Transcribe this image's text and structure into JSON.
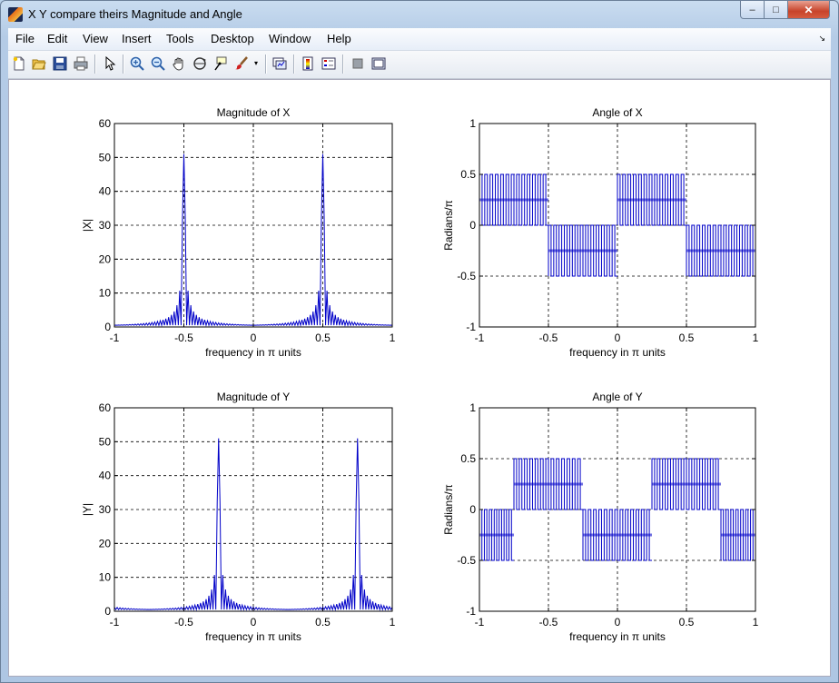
{
  "window": {
    "title": "X Y compare theirs Magnitude and Angle",
    "controls": {
      "minimize": "–",
      "maximize": "□",
      "close": "✕"
    }
  },
  "menu": {
    "items": [
      "File",
      "Edit",
      "View",
      "Insert",
      "Tools",
      "Desktop",
      "Window",
      "Help"
    ],
    "dock_arrow": "↘"
  },
  "toolbar": {
    "icons": [
      "new-figure-icon",
      "open-file-icon",
      "save-icon",
      "print-icon",
      "edit-plot-arrow-icon",
      "zoom-in-icon",
      "zoom-out-icon",
      "pan-hand-icon",
      "rotate-3d-icon",
      "data-cursor-icon",
      "brush-icon",
      "dropdown-arrow-icon",
      "link-plot-icon",
      "colorbar-icon",
      "legend-icon",
      "hide-plot-tools-icon",
      "show-plot-tools-icon"
    ]
  },
  "colors": {
    "line": "#0000c8",
    "grid": "#000000"
  },
  "chart_data": [
    {
      "type": "line",
      "title": "Magnitude of X",
      "xlabel": "frequency in π units",
      "ylabel": "|X|",
      "xlim": [
        -1,
        1
      ],
      "ylim": [
        0,
        60
      ],
      "xticks": [
        "-1",
        "-0.5",
        "0",
        "0.5",
        "1"
      ],
      "yticks": [
        "0",
        "10",
        "20",
        "30",
        "40",
        "50",
        "60"
      ],
      "grid": true,
      "peaks": [
        -0.5,
        0.5
      ],
      "peak_value": 51,
      "series": [
        {
          "kind": "dft-magnitude",
          "x_range": [
            -1,
            1
          ],
          "samples": 201,
          "N": 101,
          "freqs": [
            -0.5,
            0.5
          ],
          "peak": 51
        }
      ]
    },
    {
      "type": "line",
      "title": "Angle of X",
      "xlabel": "frequency in π units",
      "ylabel": "Radians/π",
      "xlim": [
        -1,
        1
      ],
      "ylim": [
        -1,
        1
      ],
      "xticks": [
        "-1",
        "-0.5",
        "0",
        "0.5",
        "1"
      ],
      "yticks": [
        "-1",
        "-0.5",
        "0",
        "0.5",
        "1"
      ],
      "grid": true,
      "segments": [
        {
          "x0": -1,
          "x1": -0.5,
          "low": 0,
          "high": 0.5
        },
        {
          "x0": -0.5,
          "x1": 0,
          "low": -0.5,
          "high": 0
        },
        {
          "x0": 0,
          "x1": 0.5,
          "low": 0,
          "high": 0.5
        },
        {
          "x0": 0.5,
          "x1": 1,
          "low": -0.5,
          "high": 0
        }
      ]
    },
    {
      "type": "line",
      "title": "Magnitude of Y",
      "xlabel": "frequency in π units",
      "ylabel": "|Y|",
      "xlim": [
        -1,
        1
      ],
      "ylim": [
        0,
        60
      ],
      "xticks": [
        "-1",
        "-0.5",
        "0",
        "0.5",
        "1"
      ],
      "yticks": [
        "0",
        "10",
        "20",
        "30",
        "40",
        "50",
        "60"
      ],
      "grid": true,
      "peaks": [
        -0.25,
        0.75
      ],
      "peak_value": 51,
      "series": [
        {
          "kind": "dft-magnitude",
          "x_range": [
            -1,
            1
          ],
          "samples": 201,
          "N": 101,
          "freqs": [
            -0.25,
            0.75
          ],
          "peak": 51
        }
      ]
    },
    {
      "type": "line",
      "title": "Angle of Y",
      "xlabel": "frequency in π units",
      "ylabel": "Radians/π",
      "xlim": [
        -1,
        1
      ],
      "ylim": [
        -1,
        1
      ],
      "xticks": [
        "-1",
        "-0.5",
        "0",
        "0.5",
        "1"
      ],
      "yticks": [
        "-1",
        "-0.5",
        "0",
        "0.5",
        "1"
      ],
      "grid": true,
      "segments": [
        {
          "x0": -1,
          "x1": -0.75,
          "low": -0.5,
          "high": 0
        },
        {
          "x0": -0.75,
          "x1": -0.25,
          "low": 0,
          "high": 0.5
        },
        {
          "x0": -0.25,
          "x1": 0.25,
          "low": -0.5,
          "high": 0
        },
        {
          "x0": 0.25,
          "x1": 0.75,
          "low": 0,
          "high": 0.5
        },
        {
          "x0": 0.75,
          "x1": 1,
          "low": -0.5,
          "high": 0
        }
      ]
    }
  ]
}
